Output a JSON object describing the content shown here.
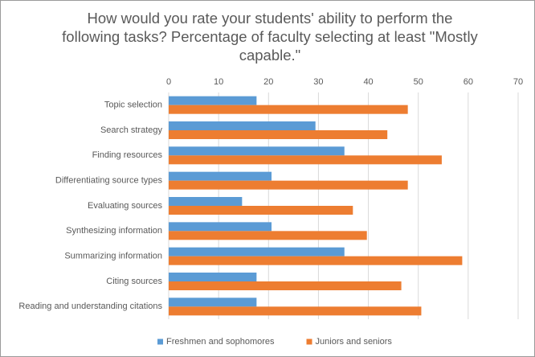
{
  "chart_data": {
    "type": "bar",
    "title": "How would you rate your students' ability to perform the following tasks? Percentage of faculty selecting at least \"Mostly capable.\"",
    "categories": [
      "Topic selection",
      "Search strategy",
      "Finding resources",
      "Differentiating source types",
      "Evaluating sources",
      "Synthesizing information",
      "Summarizing information",
      "Citing sources",
      "Reading and understanding citations"
    ],
    "series": [
      {
        "name": "Freshmen and sophomores",
        "color": "#5b9bd5",
        "values": [
          17.6,
          29.4,
          35.2,
          20.6,
          14.7,
          20.6,
          35.2,
          17.6,
          17.6
        ]
      },
      {
        "name": "Juniors and seniors",
        "color": "#ed7d31",
        "values": [
          47.9,
          43.8,
          54.7,
          47.9,
          36.9,
          39.7,
          58.8,
          46.6,
          50.6
        ]
      }
    ],
    "xlim": [
      0,
      70
    ],
    "xticks": [
      0,
      10,
      20,
      30,
      40,
      50,
      60,
      70
    ],
    "grid": true,
    "legend": "bottom"
  }
}
